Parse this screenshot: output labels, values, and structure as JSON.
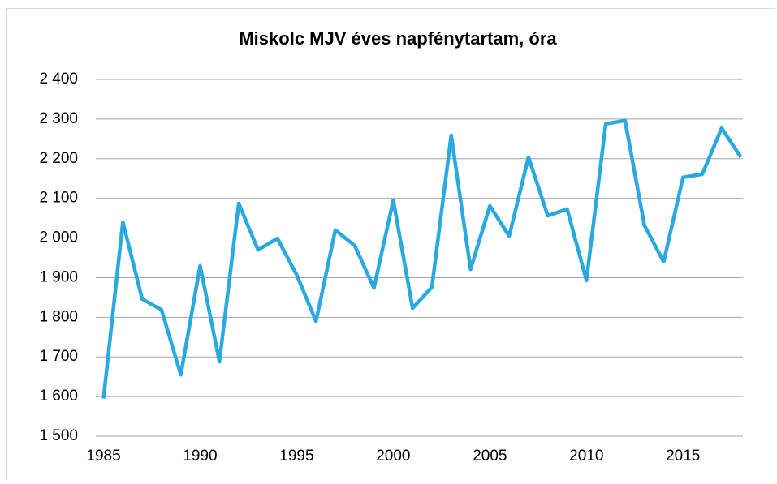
{
  "chart_data": {
    "type": "line",
    "title": "Miskolc MJV éves napfénytartam, óra",
    "x": [
      1985,
      1986,
      1987,
      1988,
      1989,
      1990,
      1991,
      1992,
      1993,
      1994,
      1995,
      1996,
      1997,
      1998,
      1999,
      2000,
      2001,
      2002,
      2003,
      2004,
      2005,
      2006,
      2007,
      2008,
      2009,
      2010,
      2011,
      2012,
      2013,
      2014,
      2015,
      2016,
      2017,
      2018
    ],
    "series": [
      {
        "name": "Miskolc",
        "color": "#29a9e0",
        "values": [
          1595,
          2040,
          1846,
          1819,
          1655,
          1930,
          1688,
          2087,
          1970,
          1999,
          1907,
          1790,
          2020,
          1981,
          1874,
          2095,
          1823,
          1876,
          2259,
          1921,
          2081,
          2005,
          2204,
          2056,
          2073,
          1893,
          2288,
          2296,
          2032,
          1940,
          2153,
          2161,
          2277,
          2204
        ]
      }
    ],
    "xlim": [
      1984.6,
      2018.1
    ],
    "xticks": [
      1985,
      1990,
      1995,
      2000,
      2005,
      2010,
      2015
    ],
    "ylim": [
      1500,
      2400
    ],
    "yticks": [
      {
        "value": 1500,
        "label": "1 500"
      },
      {
        "value": 1600,
        "label": "1 600"
      },
      {
        "value": 1700,
        "label": "1 700"
      },
      {
        "value": 1800,
        "label": "1 800"
      },
      {
        "value": 1900,
        "label": "1 900"
      },
      {
        "value": 2000,
        "label": "2 000"
      },
      {
        "value": 2100,
        "label": "2 100"
      },
      {
        "value": 2200,
        "label": "2 200"
      },
      {
        "value": 2300,
        "label": "2 300"
      },
      {
        "value": 2400,
        "label": "2 400"
      }
    ],
    "grid": true
  }
}
